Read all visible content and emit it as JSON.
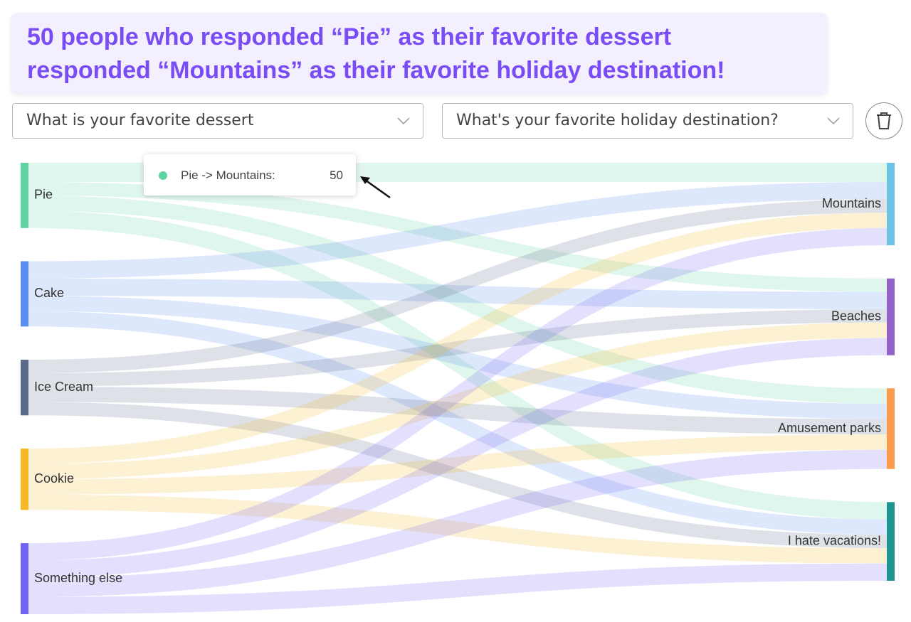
{
  "header": {
    "title_lines": [
      "50 people who responded “Pie” as their favorite dessert",
      "responded “Mountains” as their favorite holiday destination!"
    ]
  },
  "dropdowns": [
    "What is your favorite dessert",
    "What's your favorite holiday destination?"
  ],
  "tooltip": {
    "label": "Pie -> Mountains:"
  },
  "chart_data": {
    "type": "sankey",
    "targets": [
      {
        "name": "Mountains",
        "color": "#6cc3e6"
      },
      {
        "name": "Beaches",
        "color": "#9262c8"
      },
      {
        "name": "Amusement parks",
        "color": "#f99b4a"
      },
      {
        "name": "I hate vacations!",
        "color": "#1f9490"
      }
    ],
    "sources": [
      {
        "name": "Pie",
        "color": "#5fd4a2",
        "values": [
          50,
          35,
          40,
          45
        ]
      },
      {
        "name": "Cake",
        "color": "#5b8cf2",
        "values": [
          45,
          45,
          40,
          40
        ]
      },
      {
        "name": "Ice Cream",
        "color": "#5b6a8a",
        "values": [
          35,
          35,
          40,
          35
        ]
      },
      {
        "name": "Cookie",
        "color": "#f5b928",
        "values": [
          40,
          40,
          40,
          40
        ]
      },
      {
        "name": "Something else",
        "color": "#7162f6",
        "values": [
          45,
          45,
          50,
          45
        ]
      }
    ]
  }
}
